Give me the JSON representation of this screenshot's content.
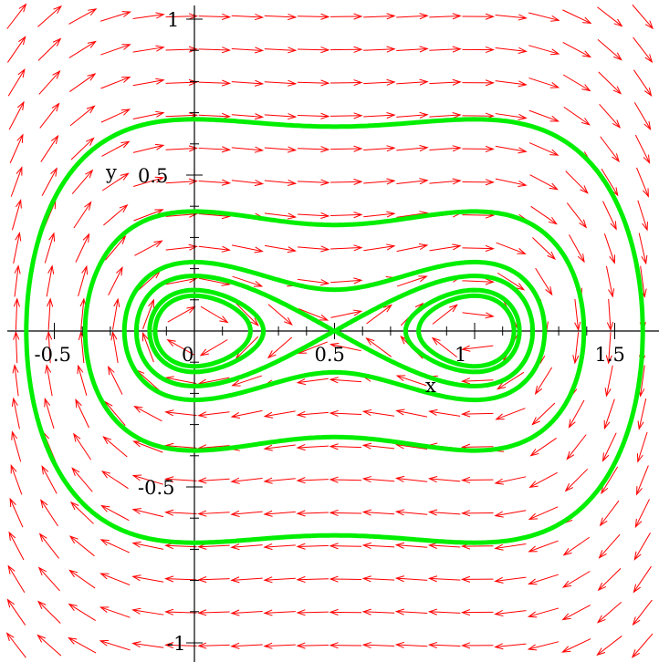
{
  "chart_data": {
    "type": "phase-portrait",
    "xlabel": "x",
    "ylabel": "y",
    "xlim": [
      -0.63,
      1.7
    ],
    "ylim": [
      -1.05,
      1.02
    ],
    "x_ticks": [
      {
        "value": -0.5,
        "label": "-0.5"
      },
      {
        "value": 0,
        "label": "0"
      },
      {
        "value": 0.5,
        "label": "0.5"
      },
      {
        "value": 1,
        "label": "1"
      },
      {
        "value": 1.5,
        "label": "1.5"
      }
    ],
    "y_ticks": [
      {
        "value": -1,
        "label": "-1"
      },
      {
        "value": -0.5,
        "label": "-0.5"
      },
      {
        "value": 0.5,
        "label": "0.5"
      },
      {
        "value": 1,
        "label": "1"
      }
    ],
    "vector_field": {
      "dx": "y",
      "dy": "-x(x-0.5)(x-1)",
      "color": "#ff0000",
      "grid_columns": 20,
      "grid_rows": 20
    },
    "trajectories": {
      "color": "#00ee00",
      "conserved_quantity": "y^2/2 + (x(x-1))^2/4",
      "levels": [
        {
          "crosses_x_axis_at": 0.2
        },
        {
          "crosses_x_axis_at": 0.5
        },
        {
          "crosses_x_axis_at": -0.16
        },
        {
          "crosses_x_axis_at": -0.25
        },
        {
          "crosses_x_axis_at": -0.39
        },
        {
          "crosses_x_axis_at": -0.6
        }
      ]
    }
  }
}
